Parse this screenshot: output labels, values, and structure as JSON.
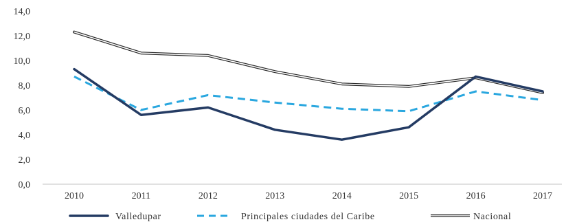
{
  "chart_data": {
    "type": "line",
    "categories": [
      "2010",
      "2011",
      "2012",
      "2013",
      "2014",
      "2015",
      "2016",
      "2017"
    ],
    "ylim": [
      0,
      14
    ],
    "y_ticks": [
      "0,0",
      "2,0",
      "4,0",
      "6,0",
      "8,0",
      "10,0",
      "12,0",
      "14,0"
    ],
    "grid": false,
    "legend_position": "bottom",
    "series": [
      {
        "name": "Valledupar",
        "values": [
          9.3,
          5.6,
          6.2,
          4.4,
          3.6,
          4.6,
          8.7,
          7.5
        ],
        "color": "#243b63",
        "style": "solid"
      },
      {
        "name": "Principales ciudades del Caribe",
        "values": [
          8.7,
          6.0,
          7.2,
          6.6,
          6.1,
          5.9,
          7.5,
          6.8
        ],
        "color": "#2aa7df",
        "style": "dashed"
      },
      {
        "name": "Nacional",
        "values": [
          12.3,
          10.6,
          10.4,
          9.1,
          8.1,
          7.9,
          8.6,
          7.4
        ],
        "color": "#2a2a2a",
        "style": "double"
      }
    ]
  }
}
